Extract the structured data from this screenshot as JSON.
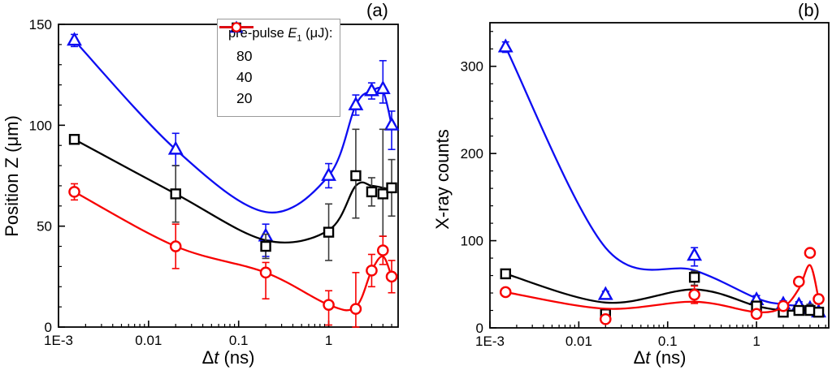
{
  "figure": {
    "background": "#ffffff"
  },
  "chart_data": [
    {
      "type": "line",
      "panel_label": "(a)",
      "ylabel": "Position Z (μm)",
      "xlabel_parts": {
        "d": "Δ",
        "v": "t",
        "u": "  (ns)"
      },
      "xscale": "log",
      "xlim": [
        0.001,
        5.9
      ],
      "ylim": [
        0,
        150
      ],
      "grid": false,
      "x_tick_labels": [
        {
          "v": 0.001,
          "label": "1E-3"
        },
        {
          "v": 0.01,
          "label": "0.01"
        },
        {
          "v": 0.1,
          "label": "0.1"
        },
        {
          "v": 1,
          "label": "1"
        }
      ],
      "y_tick_labels": [
        {
          "v": 0,
          "label": "0"
        },
        {
          "v": 50,
          "label": "50"
        },
        {
          "v": 100,
          "label": "100"
        },
        {
          "v": 150,
          "label": "150"
        }
      ],
      "legend": {
        "pre": "pre-pulse ",
        "sym": "E",
        "sub": "1",
        "post": " (μJ):",
        "position": "top-center"
      },
      "x": [
        0.0015,
        0.02,
        0.2,
        1,
        2,
        3,
        4,
        5
      ],
      "series": [
        {
          "name": "80",
          "marker": "triangle",
          "color": "#0d0df2",
          "y": [
            142,
            88,
            45,
            75,
            110,
            117,
            118,
            100
          ],
          "err": [
            3,
            8,
            [
              10,
              6
            ],
            6,
            5,
            4,
            [
              7,
              14
            ],
            [
              12,
              7
            ]
          ],
          "curve": [
            142,
            88,
            57,
            75,
            110,
            117,
            117,
            100
          ]
        },
        {
          "name": "40",
          "marker": "square",
          "color": "#000000",
          "err_color": "#3a3a3a",
          "y": [
            93,
            66,
            40,
            47,
            75,
            67,
            66,
            69
          ],
          "err": [
            2,
            14,
            6,
            14,
            [
              21,
              23
            ],
            7,
            [
              21,
              32
            ],
            14
          ],
          "curve": [
            93,
            66,
            43,
            48,
            70,
            70,
            69,
            68
          ]
        },
        {
          "name": "20",
          "marker": "circle",
          "color": "#f70000",
          "y": [
            67,
            40,
            27,
            11,
            9,
            28,
            38,
            25
          ],
          "err": [
            4,
            11,
            [
              13,
              5
            ],
            [
              10,
              7
            ],
            [
              9,
              18
            ],
            8,
            7,
            8
          ],
          "curve": [
            67,
            40,
            27,
            11,
            10,
            28,
            35,
            25
          ]
        }
      ]
    },
    {
      "type": "line",
      "panel_label": "(b)",
      "ylabel": "X-ray counts",
      "xlabel_parts": {
        "d": "Δ",
        "v": "t",
        "u": " (ns)"
      },
      "xscale": "log",
      "xlim": [
        0.001,
        6.5
      ],
      "ylim": [
        0,
        350
      ],
      "grid": false,
      "x_tick_labels": [
        {
          "v": 0.001,
          "label": "1E-3"
        },
        {
          "v": 0.01,
          "label": "0.01"
        },
        {
          "v": 0.1,
          "label": "0.1"
        },
        {
          "v": 1,
          "label": "1"
        }
      ],
      "y_tick_labels": [
        {
          "v": 0,
          "label": "0"
        },
        {
          "v": 100,
          "label": "100"
        },
        {
          "v": 200,
          "label": "200"
        },
        {
          "v": 300,
          "label": "300"
        }
      ],
      "x": [
        0.0015,
        0.02,
        0.2,
        1,
        2,
        3,
        4,
        5
      ],
      "series": [
        {
          "name": "80",
          "marker": "triangle",
          "color": "#0d0df2",
          "y": [
            322,
            38,
            83,
            32,
            27,
            26,
            22,
            18
          ],
          "err": [
            6,
            4,
            [
              12,
              9
            ],
            5,
            4,
            4,
            4,
            5
          ],
          "curve": [
            322,
            92,
            66,
            34,
            27,
            25,
            22,
            18
          ]
        },
        {
          "name": "40",
          "marker": "square",
          "color": "#000000",
          "err_color": "#3a3a3a",
          "y": [
            62,
            16,
            58,
            25,
            18,
            20,
            20,
            18
          ],
          "err": [
            4,
            3,
            [
              9,
              7
            ],
            4,
            3,
            3,
            [
              4,
              7
            ],
            3
          ],
          "curve": [
            62,
            29,
            44,
            25,
            20,
            20,
            20,
            18
          ]
        },
        {
          "name": "20",
          "marker": "circle",
          "color": "#f70000",
          "y": [
            41,
            10,
            38,
            16,
            25,
            53,
            86,
            33
          ],
          "err": [
            4,
            3,
            10,
            3,
            4,
            4,
            4,
            5
          ],
          "curve": [
            41,
            22,
            30,
            18,
            24,
            45,
            72,
            33
          ]
        }
      ]
    }
  ]
}
